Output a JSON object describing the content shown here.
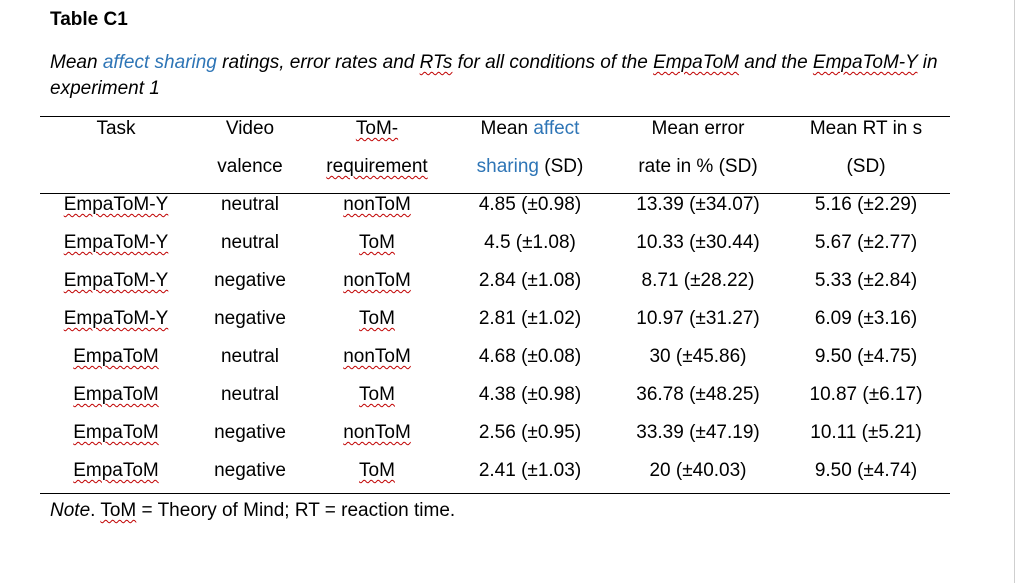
{
  "table_label": "Table C1",
  "caption": {
    "part1": "Mean ",
    "highlight": "affect sharing",
    "part2": " ratings, error rates and ",
    "rts": "RTs",
    "part3": " for all conditions of the ",
    "empatom": "EmpaToM",
    "part4": " and the ",
    "empatom_y": "EmpaToM-Y",
    "part5": " in experiment 1"
  },
  "headers": {
    "task": "Task",
    "video_line1": "Video",
    "video_line2": "valence",
    "tom_line1": "ToM-",
    "tom_line2": "requirement",
    "affect_line1_prefix": "Mean ",
    "affect_line1_blue": "affect",
    "affect_line2_blue": "sharing",
    "affect_line2_suffix": " (SD)",
    "error_line1": "Mean error",
    "error_line2": "rate in % (SD)",
    "rt_line1": "Mean RT in s",
    "rt_line2": "(SD)"
  },
  "rows": [
    {
      "task": "EmpaToM-Y",
      "valence": "neutral",
      "tom": "nonToM",
      "affect": "4.85 (±0.98)",
      "error": "13.39 (±34.07)",
      "rt": "5.16 (±2.29)"
    },
    {
      "task": "EmpaToM-Y",
      "valence": "neutral",
      "tom": "ToM",
      "affect": "4.5 (±1.08)",
      "error": "10.33 (±30.44)",
      "rt": "5.67 (±2.77)"
    },
    {
      "task": "EmpaToM-Y",
      "valence": "negative",
      "tom": "nonToM",
      "affect": "2.84 (±1.08)",
      "error": "8.71 (±28.22)",
      "rt": "5.33 (±2.84)"
    },
    {
      "task": "EmpaToM-Y",
      "valence": "negative",
      "tom": "ToM",
      "affect": "2.81 (±1.02)",
      "error": "10.97 (±31.27)",
      "rt": "6.09 (±3.16)"
    },
    {
      "task": "EmpaToM",
      "valence": "neutral",
      "tom": "nonToM",
      "affect": "4.68 (±0.08)",
      "error": "30 (±45.86)",
      "rt": "9.50 (±4.75)"
    },
    {
      "task": "EmpaToM",
      "valence": "neutral",
      "tom": "ToM",
      "affect": "4.38 (±0.98)",
      "error": "36.78 (±48.25)",
      "rt": "10.87 (±6.17)"
    },
    {
      "task": "EmpaToM",
      "valence": "negative",
      "tom": "nonToM",
      "affect": "2.56 (±0.95)",
      "error": "33.39 (±47.19)",
      "rt": "10.11 (±5.21)"
    },
    {
      "task": "EmpaToM",
      "valence": "negative",
      "tom": "ToM",
      "affect": "2.41 (±1.03)",
      "error": "20 (±40.03)",
      "rt": "9.50 (±4.74)"
    }
  ],
  "note": {
    "label": "Note",
    "after_label": ". ",
    "tom": "ToM",
    "text": " = Theory of Mind; RT = reaction time."
  }
}
